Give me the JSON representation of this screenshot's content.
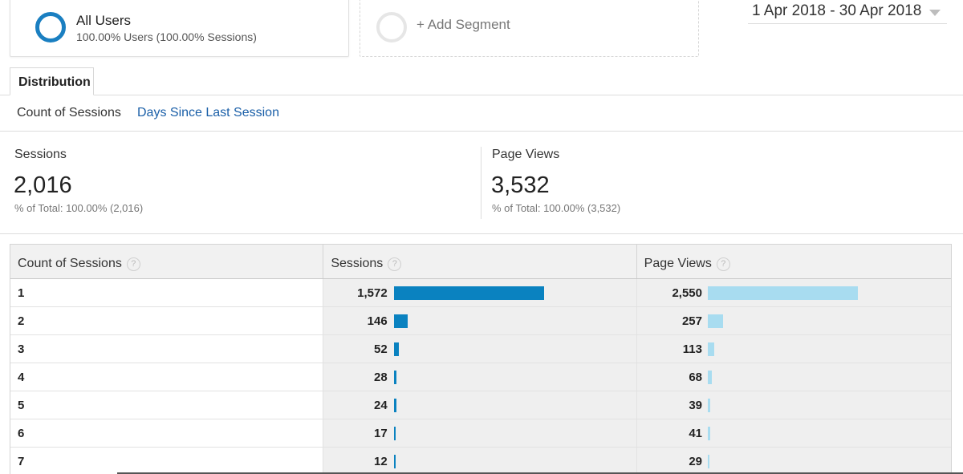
{
  "segments": {
    "active": {
      "name": "All Users",
      "sub": "100.00% Users (100.00% Sessions)",
      "color": "#1a7fc1"
    },
    "add_label": "+ Add Segment"
  },
  "date_range": "1 Apr 2018 - 30 Apr 2018",
  "tabs": {
    "main": "Distribution",
    "sub_active": "Count of Sessions",
    "sub_link": "Days Since Last Session"
  },
  "summary": {
    "sessions": {
      "label": "Sessions",
      "value": "2,016",
      "pct": "% of Total: 100.00% (2,016)"
    },
    "pageviews": {
      "label": "Page Views",
      "value": "3,532",
      "pct": "% of Total: 100.00% (3,532)"
    }
  },
  "table": {
    "headers": [
      "Count of Sessions",
      "Sessions",
      "Page Views"
    ],
    "help_glyph": "?",
    "max_sessions": 1572,
    "max_pageviews": 2550,
    "rows": [
      {
        "count": "1",
        "sessions": "1,572",
        "sessions_n": 1572,
        "pageviews": "2,550",
        "pageviews_n": 2550
      },
      {
        "count": "2",
        "sessions": "146",
        "sessions_n": 146,
        "pageviews": "257",
        "pageviews_n": 257
      },
      {
        "count": "3",
        "sessions": "52",
        "sessions_n": 52,
        "pageviews": "113",
        "pageviews_n": 113
      },
      {
        "count": "4",
        "sessions": "28",
        "sessions_n": 28,
        "pageviews": "68",
        "pageviews_n": 68
      },
      {
        "count": "5",
        "sessions": "24",
        "sessions_n": 24,
        "pageviews": "39",
        "pageviews_n": 39
      },
      {
        "count": "6",
        "sessions": "17",
        "sessions_n": 17,
        "pageviews": "41",
        "pageviews_n": 41
      },
      {
        "count": "7",
        "sessions": "12",
        "sessions_n": 12,
        "pageviews": "29",
        "pageviews_n": 29
      }
    ]
  },
  "colors": {
    "sessions_bar": "#0a82c0",
    "pageviews_bar": "#a8dcf0",
    "link": "#1a5fa8"
  }
}
